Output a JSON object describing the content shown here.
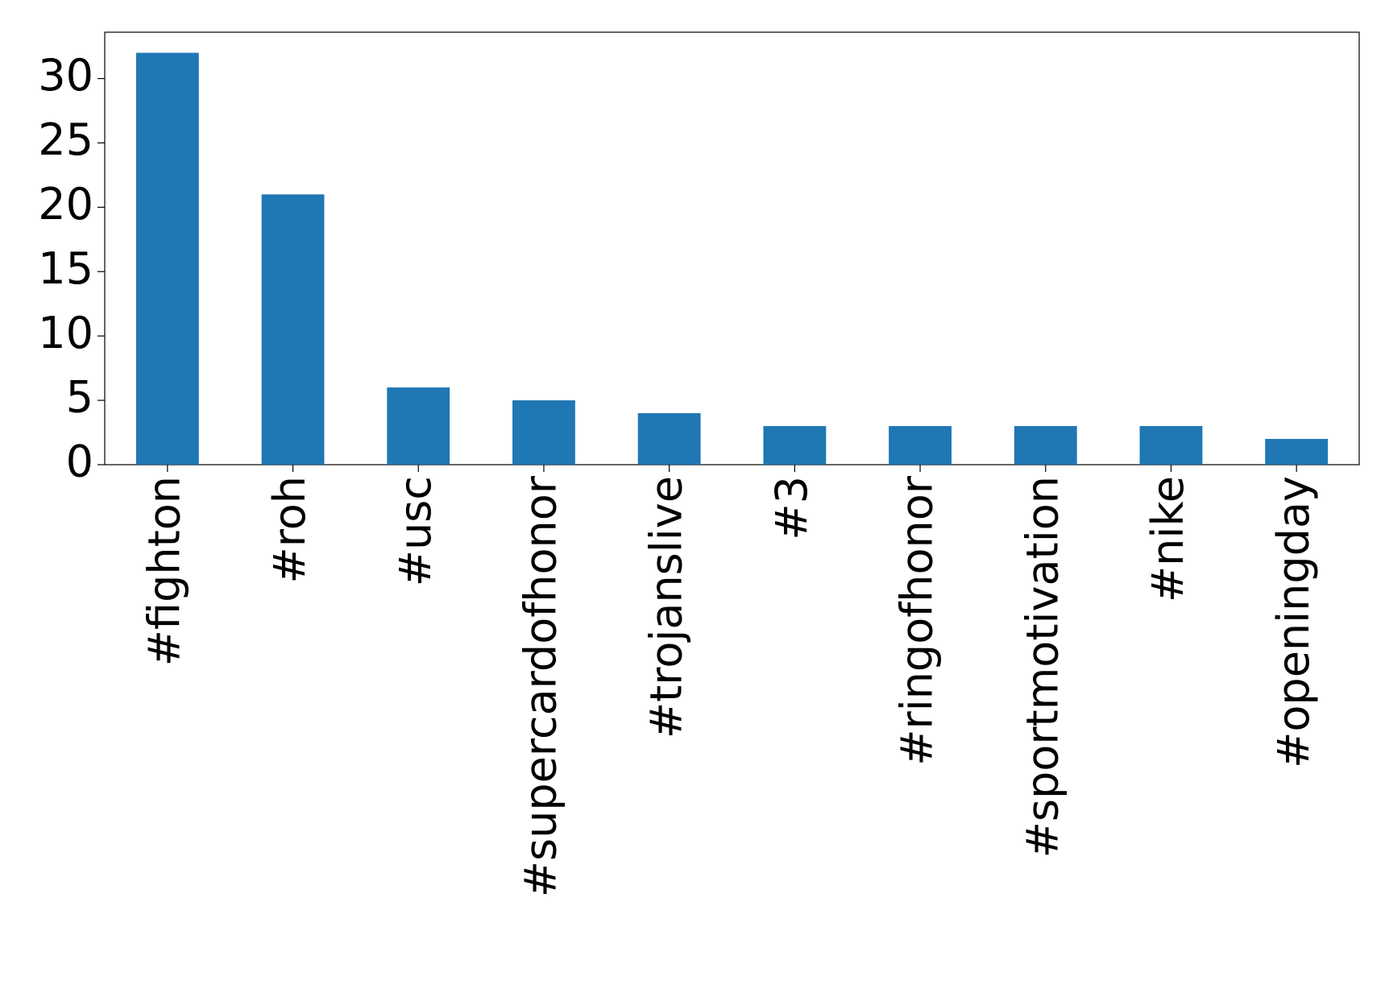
{
  "chart_data": {
    "type": "bar",
    "categories": [
      "#fighton",
      "#roh",
      "#usc",
      "#supercardofhonor",
      "#trojanslive",
      "#3",
      "#ringofhonor",
      "#sportmotivation",
      "#nike",
      "#openingday"
    ],
    "values": [
      32,
      21,
      6,
      5,
      4,
      3,
      3,
      3,
      3,
      2
    ],
    "color": "#1f77b4",
    "ylim": [
      0,
      33.6
    ],
    "yticks": [
      0,
      5,
      10,
      15,
      20,
      25,
      30
    ],
    "grid": false
  }
}
